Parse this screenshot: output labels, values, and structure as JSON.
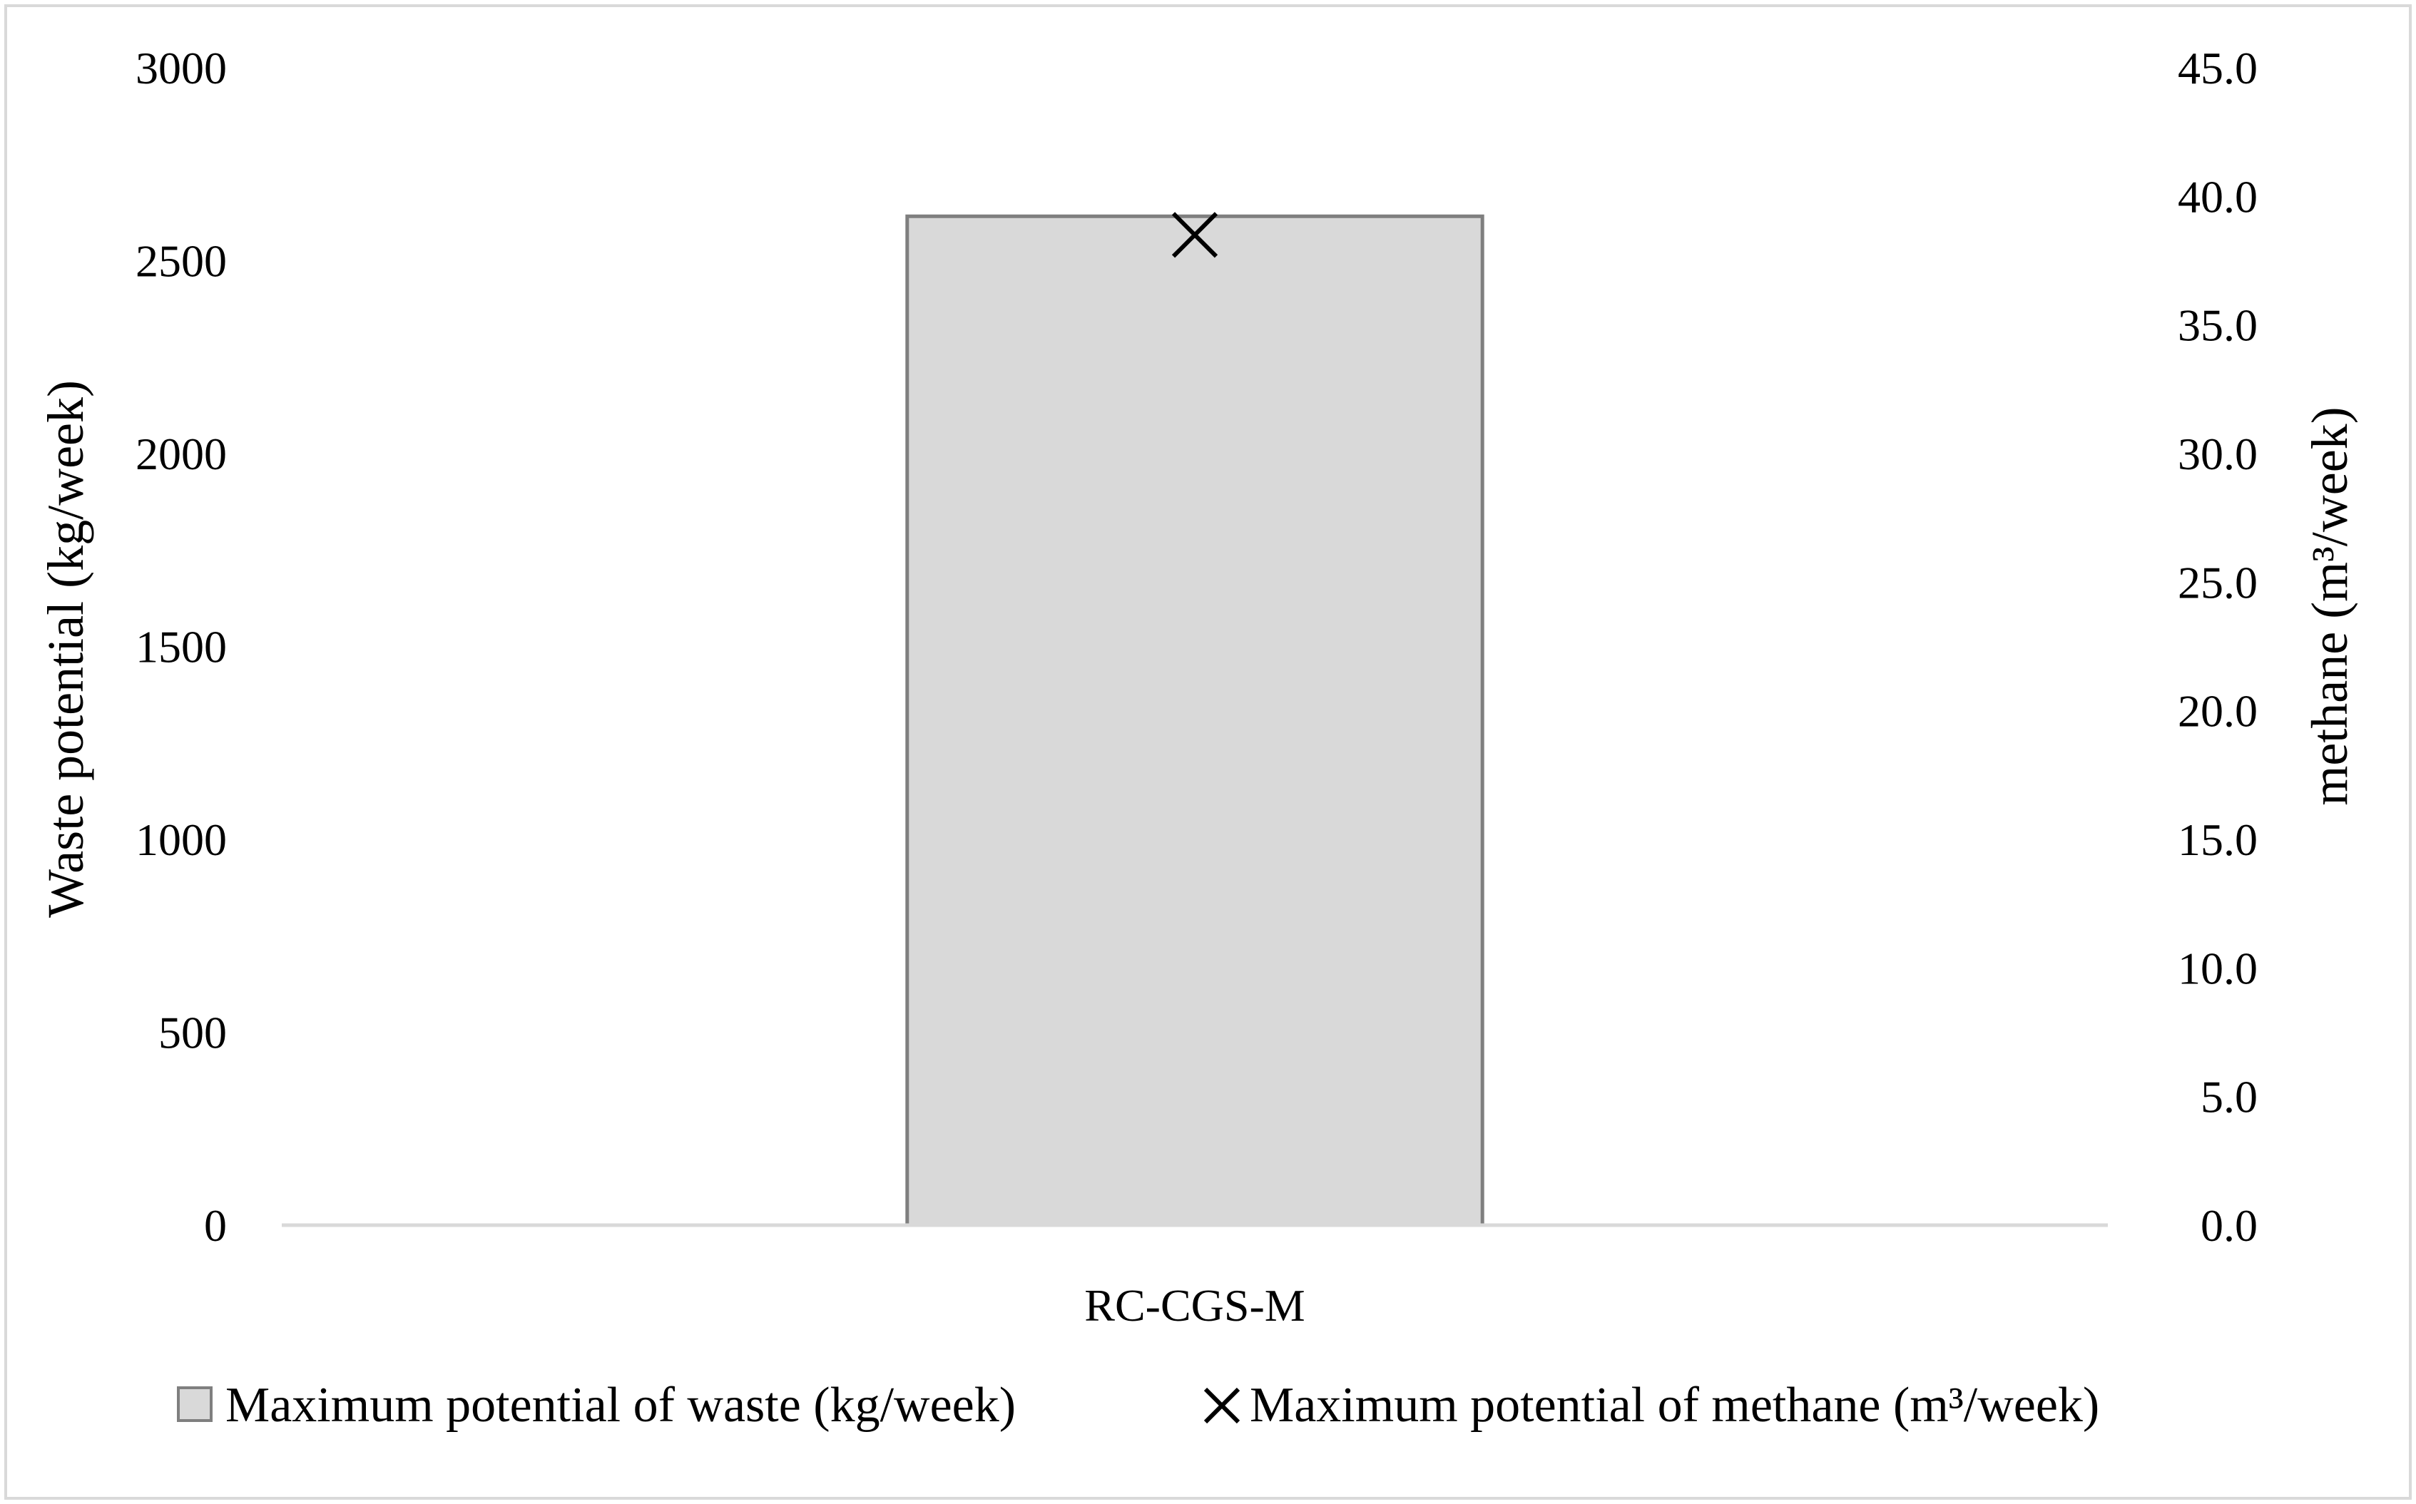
{
  "chart_data": {
    "type": "bar",
    "categories": [
      "RC-CGS-M"
    ],
    "series": [
      {
        "name": "Maximum potential of waste (kg/week)",
        "kind": "bar",
        "axis": "left",
        "values": [
          2615
        ],
        "fill": "#d9d9d9",
        "stroke": "#7f7f7f"
      },
      {
        "name": "Maximum potential of methane (m³/week)",
        "kind": "marker",
        "marker": "x",
        "axis": "right",
        "values": [
          38.5
        ],
        "color": "#000000"
      }
    ],
    "y_left": {
      "label": "Waste potential (kg/week)",
      "ylim": [
        0,
        3000
      ],
      "ticks": [
        0,
        500,
        1000,
        1500,
        2000,
        2500,
        3000
      ],
      "tick_labels": [
        "0",
        "500",
        "1000",
        "1500",
        "2000",
        "2500",
        "3000"
      ]
    },
    "y_right": {
      "label": "methane (m³/week)",
      "ylim": [
        0,
        45
      ],
      "ticks": [
        0,
        5,
        10,
        15,
        20,
        25,
        30,
        35,
        40,
        45
      ],
      "tick_labels": [
        "0.0",
        "5.0",
        "10.0",
        "15.0",
        "20.0",
        "25.0",
        "30.0",
        "35.0",
        "40.0",
        "45.0"
      ]
    },
    "xlabel": "",
    "title": "",
    "grid": false,
    "legend": "bottom",
    "colors": {
      "frame": "#d9d9d9",
      "baseline": "#d9d9d9"
    }
  }
}
